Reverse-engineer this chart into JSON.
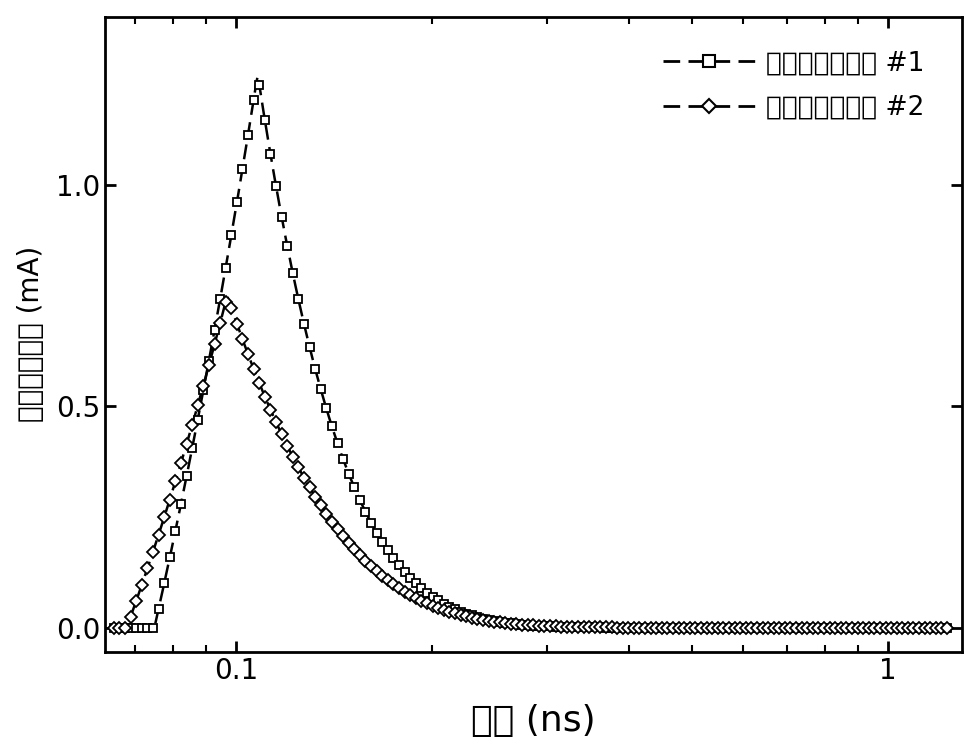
{
  "xlabel": "时间 (ns)",
  "ylabel": "漏级收集电流 (mA)",
  "xlim": [
    0.063,
    1.3
  ],
  "ylim": [
    -0.055,
    1.38
  ],
  "yticks": [
    0.0,
    0.5,
    1.0
  ],
  "legend1_label": "重离子入射位置 #1",
  "legend2_label": "重离子入射位置 #2",
  "line_color": "#000000",
  "background_color": "#ffffff",
  "t_rise1": 0.075,
  "t_peak1": 0.108,
  "peak1": 1.25,
  "tau1": 0.032,
  "t_rise2": 0.068,
  "t_peak2": 0.097,
  "peak2": 0.75,
  "tau2": 0.038,
  "xlabel_fontsize": 26,
  "ylabel_fontsize": 20,
  "tick_fontsize": 20,
  "legend_fontsize": 19
}
